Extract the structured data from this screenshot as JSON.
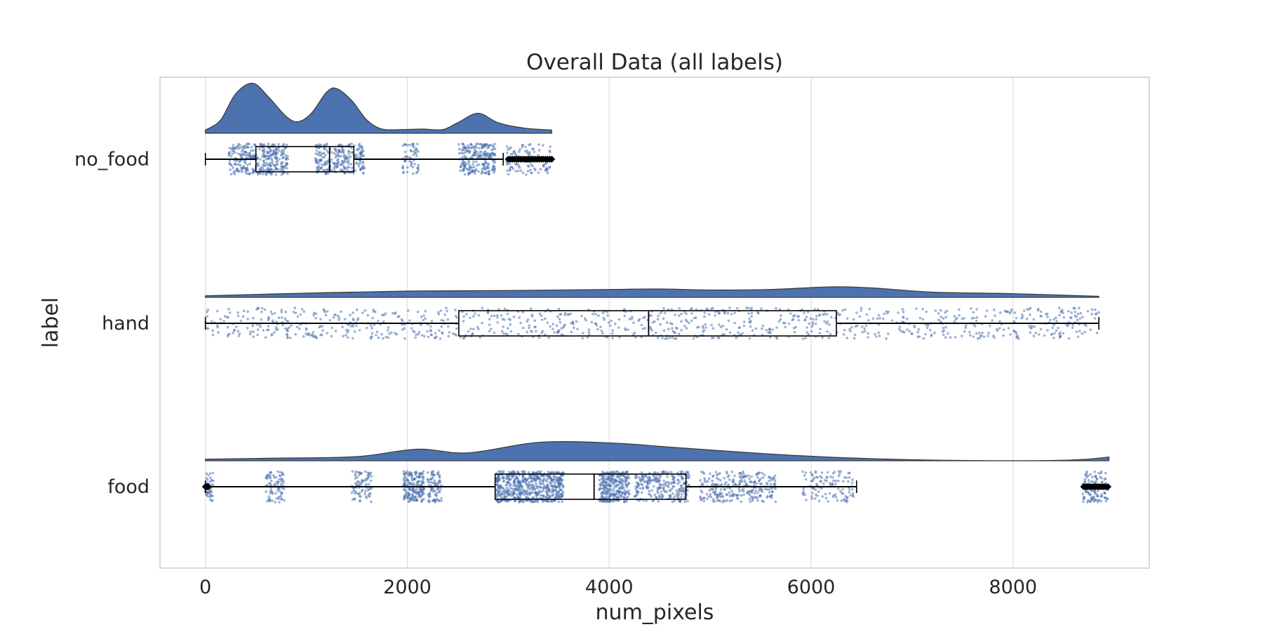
{
  "chart_data": {
    "type": "raincloud",
    "orientation": "horizontal",
    "title": "Overall Data (all labels)",
    "xlabel": "num_pixels",
    "ylabel": "label",
    "xlim": [
      -450,
      9350
    ],
    "xticks": [
      0,
      2000,
      4000,
      6000,
      8000
    ],
    "xtick_labels": [
      "0",
      "2000",
      "4000",
      "6000",
      "8000"
    ],
    "grid": true,
    "color": "#4c72b0",
    "categories": [
      "no_food",
      "hand",
      "food"
    ],
    "series": [
      {
        "label": "no_food",
        "box": {
          "whisker_low": 0,
          "q1": 500,
          "median": 1230,
          "q3": 1470,
          "whisker_high": 2950
        },
        "outliers": [
          {
            "from": 3000,
            "to": 3430,
            "dense": true
          }
        ],
        "density": [
          [
            0,
            0.06
          ],
          [
            150,
            0.25
          ],
          [
            300,
            0.75
          ],
          [
            470,
            0.95
          ],
          [
            620,
            0.7
          ],
          [
            800,
            0.32
          ],
          [
            920,
            0.22
          ],
          [
            1050,
            0.38
          ],
          [
            1200,
            0.78
          ],
          [
            1300,
            0.85
          ],
          [
            1450,
            0.62
          ],
          [
            1600,
            0.25
          ],
          [
            1750,
            0.08
          ],
          [
            1950,
            0.07
          ],
          [
            2150,
            0.08
          ],
          [
            2350,
            0.07
          ],
          [
            2500,
            0.2
          ],
          [
            2700,
            0.38
          ],
          [
            2900,
            0.2
          ],
          [
            3150,
            0.1
          ],
          [
            3430,
            0.06
          ]
        ],
        "strip_clusters": [
          {
            "from": 230,
            "to": 820,
            "weight": 340
          },
          {
            "from": 1090,
            "to": 1580,
            "weight": 240
          },
          {
            "from": 1950,
            "to": 2120,
            "weight": 55
          },
          {
            "from": 2510,
            "to": 2870,
            "weight": 230
          },
          {
            "from": 2980,
            "to": 3420,
            "weight": 110
          }
        ]
      },
      {
        "label": "hand",
        "box": {
          "whisker_low": 0,
          "q1": 2510,
          "median": 4390,
          "q3": 6250,
          "whisker_high": 8850
        },
        "outliers": [],
        "density": [
          [
            0,
            0.03
          ],
          [
            1000,
            0.08
          ],
          [
            2000,
            0.12
          ],
          [
            3000,
            0.13
          ],
          [
            4000,
            0.15
          ],
          [
            4500,
            0.16
          ],
          [
            5000,
            0.14
          ],
          [
            5600,
            0.15
          ],
          [
            6200,
            0.2
          ],
          [
            6600,
            0.18
          ],
          [
            7200,
            0.1
          ],
          [
            8000,
            0.07
          ],
          [
            8850,
            0.02
          ]
        ],
        "strip_clusters": [
          {
            "from": 0,
            "to": 8850,
            "weight": 1000
          }
        ]
      },
      {
        "label": "food",
        "box": {
          "whisker_low": 0,
          "q1": 2870,
          "median": 3850,
          "q3": 4760,
          "whisker_high": 6450
        },
        "outliers": [
          {
            "from": 0,
            "to": 30,
            "dense": true
          },
          {
            "from": 8700,
            "to": 8940,
            "dense": true
          }
        ],
        "density": [
          [
            0,
            0.03
          ],
          [
            700,
            0.05
          ],
          [
            1500,
            0.08
          ],
          [
            2100,
            0.22
          ],
          [
            2600,
            0.15
          ],
          [
            3300,
            0.35
          ],
          [
            4000,
            0.34
          ],
          [
            4600,
            0.26
          ],
          [
            5500,
            0.14
          ],
          [
            6300,
            0.06
          ],
          [
            7300,
            0.01
          ],
          [
            8500,
            0.01
          ],
          [
            8950,
            0.07
          ]
        ],
        "strip_clusters": [
          {
            "from": 0,
            "to": 80,
            "weight": 40
          },
          {
            "from": 600,
            "to": 780,
            "weight": 80
          },
          {
            "from": 1450,
            "to": 1650,
            "weight": 80
          },
          {
            "from": 1960,
            "to": 2170,
            "weight": 180
          },
          {
            "from": 2200,
            "to": 2340,
            "weight": 80
          },
          {
            "from": 2880,
            "to": 3550,
            "weight": 600
          },
          {
            "from": 3900,
            "to": 4200,
            "weight": 280
          },
          {
            "from": 4250,
            "to": 4800,
            "weight": 250
          },
          {
            "from": 4900,
            "to": 5650,
            "weight": 260
          },
          {
            "from": 5900,
            "to": 6420,
            "weight": 110
          },
          {
            "from": 8690,
            "to": 8940,
            "weight": 120
          }
        ]
      }
    ]
  }
}
